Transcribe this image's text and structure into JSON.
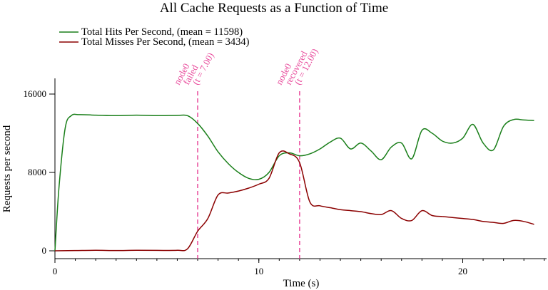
{
  "chart_data": {
    "type": "line",
    "title": "All Cache Requests as a Function of Time",
    "xlabel": "Time (s)",
    "ylabel": "Requests per second",
    "xlim": [
      0,
      24
    ],
    "ylim": [
      0,
      16000
    ],
    "x_ticks": [
      0,
      10,
      20
    ],
    "y_ticks": [
      0,
      8000,
      16000
    ],
    "x_minor_step": 1,
    "grid": false,
    "legend_position": "top-left",
    "series": [
      {
        "name": "Total Hits Per Second, (mean = 11598)",
        "color": "#1a7f1a",
        "x": [
          0,
          0.2,
          0.5,
          0.8,
          1.2,
          2,
          3,
          4,
          5,
          6,
          6.5,
          7,
          7.5,
          8,
          8.5,
          9,
          9.5,
          10,
          10.5,
          11,
          11.5,
          12,
          12.5,
          13,
          13.5,
          14,
          14.5,
          15,
          15.5,
          16,
          16.5,
          17,
          17.5,
          18,
          18.5,
          19,
          19.5,
          20,
          20.5,
          21,
          21.5,
          22,
          22.5,
          23,
          23.5
        ],
        "values": [
          0,
          6500,
          12500,
          13800,
          13900,
          13850,
          13800,
          13850,
          13800,
          13820,
          13800,
          13000,
          11700,
          10100,
          8900,
          8000,
          7400,
          7300,
          8000,
          9700,
          10000,
          9700,
          9900,
          10400,
          11100,
          11500,
          10400,
          11000,
          10200,
          9300,
          10600,
          11000,
          9400,
          12300,
          12000,
          11200,
          11000,
          11500,
          12900,
          11000,
          10300,
          12700,
          13400,
          13350,
          13300
        ]
      },
      {
        "name": "Total Misses Per Second, (mean = 3434)",
        "color": "#8b0000",
        "x": [
          0,
          1,
          2,
          3,
          4,
          5,
          6,
          6.5,
          7,
          7.5,
          8,
          8.5,
          9,
          9.5,
          10,
          10.5,
          11,
          11.5,
          12,
          12.5,
          13,
          13.5,
          14,
          14.5,
          15,
          15.5,
          16,
          16.5,
          17,
          17.5,
          18,
          18.5,
          19,
          19.5,
          20,
          20.5,
          21,
          21.5,
          22,
          22.5,
          23,
          23.5
        ],
        "values": [
          0,
          30,
          50,
          30,
          50,
          40,
          50,
          200,
          2000,
          3300,
          5700,
          5900,
          6100,
          6400,
          6800,
          7400,
          10000,
          9900,
          9000,
          5000,
          4600,
          4400,
          4200,
          4100,
          4000,
          3800,
          3700,
          4100,
          3300,
          3100,
          4100,
          3600,
          3500,
          3400,
          3300,
          3200,
          3000,
          2900,
          2800,
          3100,
          3000,
          2700
        ]
      }
    ],
    "annotations": [
      {
        "x": 7,
        "lines": [
          "node0",
          "failed",
          "(t = 7.00)"
        ],
        "color": "#e8489a"
      },
      {
        "x": 12,
        "lines": [
          "node0",
          "recovered",
          "(t = 12.00)"
        ],
        "color": "#e8489a"
      }
    ]
  }
}
